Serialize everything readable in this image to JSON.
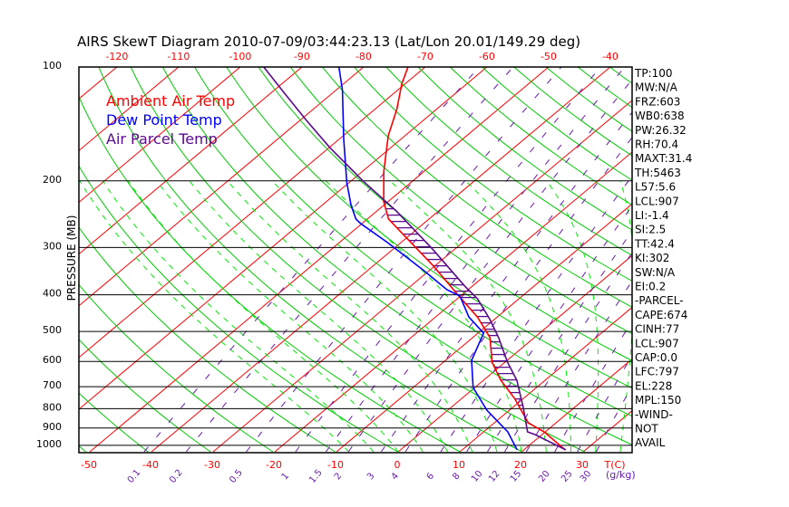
{
  "chart_data": {
    "type": "line",
    "subtype": "skew-t log-p",
    "title": "AIRS SkewT Diagram 2010-07-09/03:44:23.13 (Lat/Lon 20.01/149.29 deg)",
    "ylabel": "PRESSURE (MB)",
    "xlabel": "T(C)",
    "mixing_ratio_label": "(g/kg)",
    "ylim": [
      1033,
      100
    ],
    "pressure_ticks": [
      "100",
      "200",
      "300",
      "400",
      "500",
      "600",
      "700",
      "800",
      "900",
      "1000"
    ],
    "pressure_values": [
      100,
      200,
      300,
      400,
      500,
      600,
      700,
      800,
      900,
      1000
    ],
    "top_temp_ticks": [
      "-120",
      "-110",
      "-100",
      "-90",
      "-80",
      "-70",
      "-60",
      "-50",
      "-40"
    ],
    "top_temp_values": [
      -120,
      -110,
      -100,
      -90,
      -80,
      -70,
      -60,
      -50,
      -40
    ],
    "bottom_temp_ticks": [
      "-50",
      "-40",
      "-30",
      "-20",
      "-10",
      "0",
      "10",
      "20",
      "30"
    ],
    "bottom_temp_values": [
      -50,
      -40,
      -30,
      -20,
      -10,
      0,
      10,
      20,
      30
    ],
    "mixing_ratio_ticks": [
      "0.1",
      "0.2",
      "0.5",
      "1",
      "1.5",
      "2",
      "3",
      "4",
      "6",
      "8",
      "10",
      "12",
      "15",
      "20",
      "25",
      "30"
    ],
    "mixing_ratio_values": [
      0.1,
      0.2,
      0.5,
      1,
      1.5,
      2,
      3,
      4,
      6,
      8,
      10,
      12,
      15,
      20,
      25,
      30
    ],
    "legend": [
      {
        "label": "Ambient Air Temp",
        "color": "#ff0000"
      },
      {
        "label": "Dew Point Temp",
        "color": "#0000ff"
      },
      {
        "label": "Air Parcel Temp",
        "color": "#5a0a8c"
      }
    ],
    "series": [
      {
        "name": "Ambient Air Temp",
        "color": "#ff0000",
        "p": [
          100,
          111,
          129,
          152,
          189,
          227,
          252,
          286,
          334,
          405,
          458,
          519,
          603,
          673,
          751,
          825,
          872,
          921,
          1028
        ],
        "T": [
          -72.8,
          -70.5,
          -66.5,
          -62.7,
          -56.5,
          -50.7,
          -46.6,
          -39.4,
          -30.5,
          -20.0,
          -13.2,
          -7.2,
          -2.1,
          2.8,
          8.5,
          12.9,
          15.5,
          19.8,
          26.7
        ]
      },
      {
        "name": "Dew Point Temp",
        "color": "#0000ff",
        "p": [
          100,
          115,
          155,
          202,
          232,
          252,
          259,
          291,
          344,
          388,
          403,
          458,
          505,
          596,
          703,
          807,
          921,
          1028
        ],
        "T": [
          -84.0,
          -79.0,
          -69.3,
          -60.4,
          -55.3,
          -51.9,
          -50.3,
          -42.2,
          -31.1,
          -23.4,
          -20.1,
          -14.6,
          -9.1,
          -5.8,
          -0.3,
          6.3,
          13.9,
          18.9
        ]
      },
      {
        "name": "Air Parcel Temp",
        "color": "#5a0a8c",
        "p": [
          100,
          117,
          138,
          163,
          200,
          240,
          303,
          381,
          410,
          465,
          519,
          603,
          673,
          794,
          921,
          937,
          1028
        ],
        "T": [
          -96.2,
          -87.9,
          -79.1,
          -70.0,
          -58.1,
          -46.9,
          -33.6,
          -21.0,
          -16.7,
          -10.7,
          -5.8,
          0.4,
          5.4,
          11.7,
          17.1,
          18.9,
          26.8
        ]
      }
    ],
    "cape_region_hpa": [
      228,
      797
    ],
    "colors": {
      "isotherm": "#ff0000",
      "dry_adiabat": "#00cc00",
      "moist_adiabat": "#00ee00",
      "mixing_ratio": "#6a1ab0",
      "axis": "#000000"
    }
  },
  "indices": [
    "TP:100",
    "MW:N/A",
    "FRZ:603",
    "WB0:638",
    "PW:26.32",
    "RH:70.4",
    "MAXT:31.4",
    "TH:5463",
    "L57:5.6",
    "LCL:907",
    "LI:-1.4",
    "SI:2.5",
    "TT:42.4",
    "KI:302",
    "SW:N/A",
    "EI:0.2",
    "-PARCEL-",
    "CAPE:674",
    "CINH:77",
    "LCL:907",
    "CAP:0.0",
    "LFC:797",
    "EL:228",
    "MPL:150",
    "-WIND-",
    "NOT",
    "AVAIL"
  ]
}
